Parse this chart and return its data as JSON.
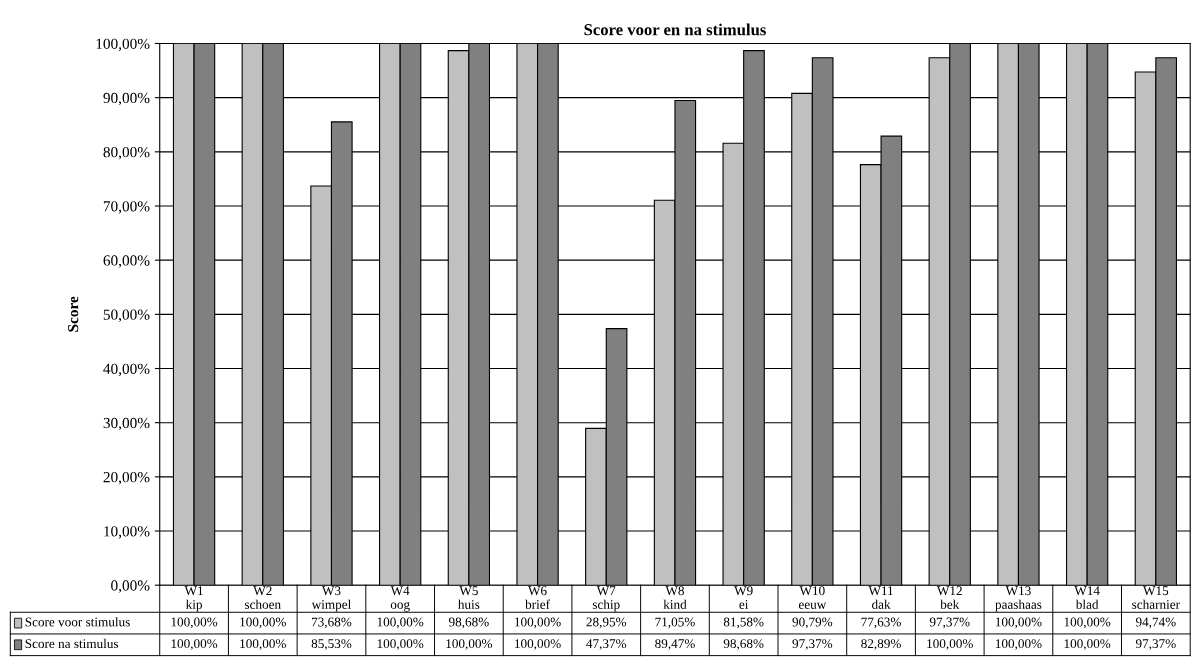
{
  "chart_data": {
    "type": "bar",
    "title": "Score voor en na stimulus",
    "ylabel": "Score",
    "categories": [
      "W1\nkip",
      "W2\nschoen",
      "W3\nwimpel",
      "W4\noog",
      "W5\nhuis",
      "W6\nbrief",
      "W7\nschip",
      "W8\nkind",
      "W9\nei",
      "W10\neeuw",
      "W11\ndak",
      "W12\nbek",
      "W13\npaashaas",
      "W14\nblad",
      "W15\nscharnier"
    ],
    "series": [
      {
        "name": "Score voor stimulus",
        "color": "#c0c0c0",
        "values": [
          100,
          100,
          73.68,
          100,
          98.68,
          100,
          28.95,
          71.05,
          81.58,
          90.79,
          77.63,
          97.37,
          100,
          100,
          94.74
        ],
        "value_labels": [
          "100,00%",
          "100,00%",
          "73,68%",
          "100,00%",
          "98,68%",
          "100,00%",
          "28,95%",
          "71,05%",
          "81,58%",
          "90,79%",
          "77,63%",
          "97,37%",
          "100,00%",
          "100,00%",
          "94,74%"
        ]
      },
      {
        "name": "Score na stimulus",
        "color": "#808080",
        "values": [
          100,
          100,
          85.53,
          100,
          100,
          100,
          47.37,
          89.47,
          98.68,
          97.37,
          82.89,
          100,
          100,
          100,
          97.37
        ],
        "value_labels": [
          "100,00%",
          "100,00%",
          "85,53%",
          "100,00%",
          "100,00%",
          "100,00%",
          "47,37%",
          "89,47%",
          "98,68%",
          "97,37%",
          "82,89%",
          "100,00%",
          "100,00%",
          "100,00%",
          "97,37%"
        ]
      }
    ],
    "ylim": [
      0,
      100
    ],
    "yticks": [
      {
        "value": 0,
        "label": "0,00%"
      },
      {
        "value": 10,
        "label": "10,00%"
      },
      {
        "value": 20,
        "label": "20,00%"
      },
      {
        "value": 30,
        "label": "30,00%"
      },
      {
        "value": 40,
        "label": "40,00%"
      },
      {
        "value": 50,
        "label": "50,00%"
      },
      {
        "value": 60,
        "label": "60,00%"
      },
      {
        "value": 70,
        "label": "70,00%"
      },
      {
        "value": 80,
        "label": "80,00%"
      },
      {
        "value": 90,
        "label": "90,00%"
      },
      {
        "value": 100,
        "label": "100,00%"
      }
    ],
    "grid": "y",
    "legend": "bottom left"
  }
}
